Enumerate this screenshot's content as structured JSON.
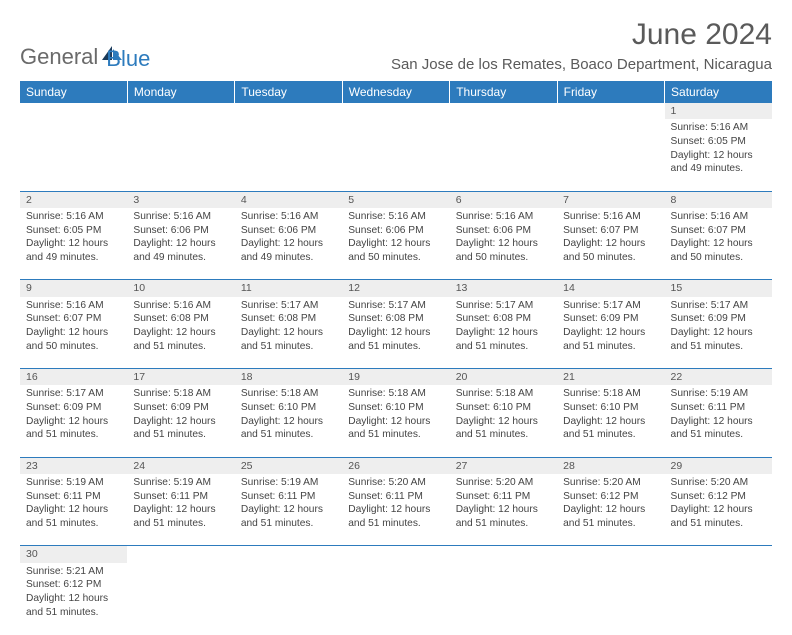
{
  "logo": {
    "word1": "General",
    "word2": "Blue"
  },
  "title": "June 2024",
  "location": "San Jose de los Remates, Boaco Department, Nicaragua",
  "colors": {
    "header_bg": "#2d7bbd",
    "header_text": "#ffffff",
    "daynum_bg": "#eeeeee",
    "rule": "#2d7bbd",
    "text": "#444444",
    "logo_gray": "#6a6a6a",
    "logo_blue": "#2d7bbd"
  },
  "daysOfWeek": [
    "Sunday",
    "Monday",
    "Tuesday",
    "Wednesday",
    "Thursday",
    "Friday",
    "Saturday"
  ],
  "weeks": [
    {
      "nums": [
        "",
        "",
        "",
        "",
        "",
        "",
        "1"
      ],
      "cells": [
        null,
        null,
        null,
        null,
        null,
        null,
        {
          "sunrise": "5:16 AM",
          "sunset": "6:05 PM",
          "daylight": "12 hours and 49 minutes."
        }
      ]
    },
    {
      "nums": [
        "2",
        "3",
        "4",
        "5",
        "6",
        "7",
        "8"
      ],
      "cells": [
        {
          "sunrise": "5:16 AM",
          "sunset": "6:05 PM",
          "daylight": "12 hours and 49 minutes."
        },
        {
          "sunrise": "5:16 AM",
          "sunset": "6:06 PM",
          "daylight": "12 hours and 49 minutes."
        },
        {
          "sunrise": "5:16 AM",
          "sunset": "6:06 PM",
          "daylight": "12 hours and 49 minutes."
        },
        {
          "sunrise": "5:16 AM",
          "sunset": "6:06 PM",
          "daylight": "12 hours and 50 minutes."
        },
        {
          "sunrise": "5:16 AM",
          "sunset": "6:06 PM",
          "daylight": "12 hours and 50 minutes."
        },
        {
          "sunrise": "5:16 AM",
          "sunset": "6:07 PM",
          "daylight": "12 hours and 50 minutes."
        },
        {
          "sunrise": "5:16 AM",
          "sunset": "6:07 PM",
          "daylight": "12 hours and 50 minutes."
        }
      ]
    },
    {
      "nums": [
        "9",
        "10",
        "11",
        "12",
        "13",
        "14",
        "15"
      ],
      "cells": [
        {
          "sunrise": "5:16 AM",
          "sunset": "6:07 PM",
          "daylight": "12 hours and 50 minutes."
        },
        {
          "sunrise": "5:16 AM",
          "sunset": "6:08 PM",
          "daylight": "12 hours and 51 minutes."
        },
        {
          "sunrise": "5:17 AM",
          "sunset": "6:08 PM",
          "daylight": "12 hours and 51 minutes."
        },
        {
          "sunrise": "5:17 AM",
          "sunset": "6:08 PM",
          "daylight": "12 hours and 51 minutes."
        },
        {
          "sunrise": "5:17 AM",
          "sunset": "6:08 PM",
          "daylight": "12 hours and 51 minutes."
        },
        {
          "sunrise": "5:17 AM",
          "sunset": "6:09 PM",
          "daylight": "12 hours and 51 minutes."
        },
        {
          "sunrise": "5:17 AM",
          "sunset": "6:09 PM",
          "daylight": "12 hours and 51 minutes."
        }
      ]
    },
    {
      "nums": [
        "16",
        "17",
        "18",
        "19",
        "20",
        "21",
        "22"
      ],
      "cells": [
        {
          "sunrise": "5:17 AM",
          "sunset": "6:09 PM",
          "daylight": "12 hours and 51 minutes."
        },
        {
          "sunrise": "5:18 AM",
          "sunset": "6:09 PM",
          "daylight": "12 hours and 51 minutes."
        },
        {
          "sunrise": "5:18 AM",
          "sunset": "6:10 PM",
          "daylight": "12 hours and 51 minutes."
        },
        {
          "sunrise": "5:18 AM",
          "sunset": "6:10 PM",
          "daylight": "12 hours and 51 minutes."
        },
        {
          "sunrise": "5:18 AM",
          "sunset": "6:10 PM",
          "daylight": "12 hours and 51 minutes."
        },
        {
          "sunrise": "5:18 AM",
          "sunset": "6:10 PM",
          "daylight": "12 hours and 51 minutes."
        },
        {
          "sunrise": "5:19 AM",
          "sunset": "6:11 PM",
          "daylight": "12 hours and 51 minutes."
        }
      ]
    },
    {
      "nums": [
        "23",
        "24",
        "25",
        "26",
        "27",
        "28",
        "29"
      ],
      "cells": [
        {
          "sunrise": "5:19 AM",
          "sunset": "6:11 PM",
          "daylight": "12 hours and 51 minutes."
        },
        {
          "sunrise": "5:19 AM",
          "sunset": "6:11 PM",
          "daylight": "12 hours and 51 minutes."
        },
        {
          "sunrise": "5:19 AM",
          "sunset": "6:11 PM",
          "daylight": "12 hours and 51 minutes."
        },
        {
          "sunrise": "5:20 AM",
          "sunset": "6:11 PM",
          "daylight": "12 hours and 51 minutes."
        },
        {
          "sunrise": "5:20 AM",
          "sunset": "6:11 PM",
          "daylight": "12 hours and 51 minutes."
        },
        {
          "sunrise": "5:20 AM",
          "sunset": "6:12 PM",
          "daylight": "12 hours and 51 minutes."
        },
        {
          "sunrise": "5:20 AM",
          "sunset": "6:12 PM",
          "daylight": "12 hours and 51 minutes."
        }
      ]
    },
    {
      "nums": [
        "30",
        "",
        "",
        "",
        "",
        "",
        ""
      ],
      "cells": [
        {
          "sunrise": "5:21 AM",
          "sunset": "6:12 PM",
          "daylight": "12 hours and 51 minutes."
        },
        null,
        null,
        null,
        null,
        null,
        null
      ]
    }
  ],
  "labels": {
    "sunrise": "Sunrise: ",
    "sunset": "Sunset: ",
    "daylight": "Daylight: "
  }
}
